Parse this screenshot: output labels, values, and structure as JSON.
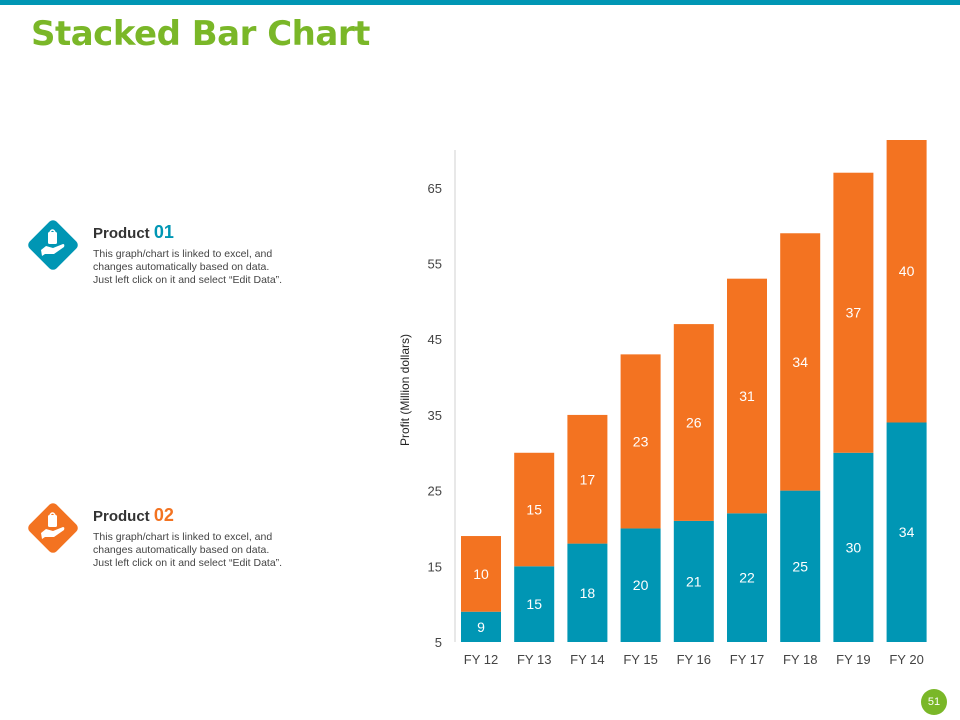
{
  "title": "Stacked Bar Chart",
  "colors": {
    "accent": "#0096B4",
    "orange": "#F37321",
    "green": "#7AB728",
    "title": "#7AB728"
  },
  "legend": [
    {
      "label": "Product",
      "number": "01",
      "color": "#0096B4",
      "icon": "hand-holding-bag-icon",
      "description": [
        "This graph/chart is linked to excel, and",
        "changes automatically based on data.",
        "Just left click on it and select “Edit Data”."
      ]
    },
    {
      "label": "Product",
      "number": "02",
      "color": "#F37321",
      "icon": "hand-holding-bag-icon",
      "description": [
        "This graph/chart is linked to excel, and",
        "changes automatically based on data.",
        "Just left click on it and select “Edit Data”."
      ]
    }
  ],
  "chart_data": {
    "type": "bar",
    "stacked": true,
    "title": "",
    "xlabel": "",
    "ylabel": "Profit  (Million dollars)",
    "categories": [
      "FY 12",
      "FY 13",
      "FY 14",
      "FY 15",
      "FY 16",
      "FY 17",
      "FY 18",
      "FY 19",
      "FY 20"
    ],
    "series": [
      {
        "name": "Product 01",
        "color": "#0096B4",
        "values": [
          9,
          15,
          18,
          20,
          21,
          22,
          25,
          30,
          34
        ]
      },
      {
        "name": "Product 02",
        "color": "#F37321",
        "values": [
          10,
          15,
          17,
          23,
          26,
          31,
          34,
          37,
          40
        ]
      }
    ],
    "ylim": [
      5,
      70
    ],
    "yticks": [
      5,
      15,
      25,
      35,
      45,
      55,
      65
    ],
    "grid": false,
    "legend": "left"
  },
  "page_number": "51"
}
